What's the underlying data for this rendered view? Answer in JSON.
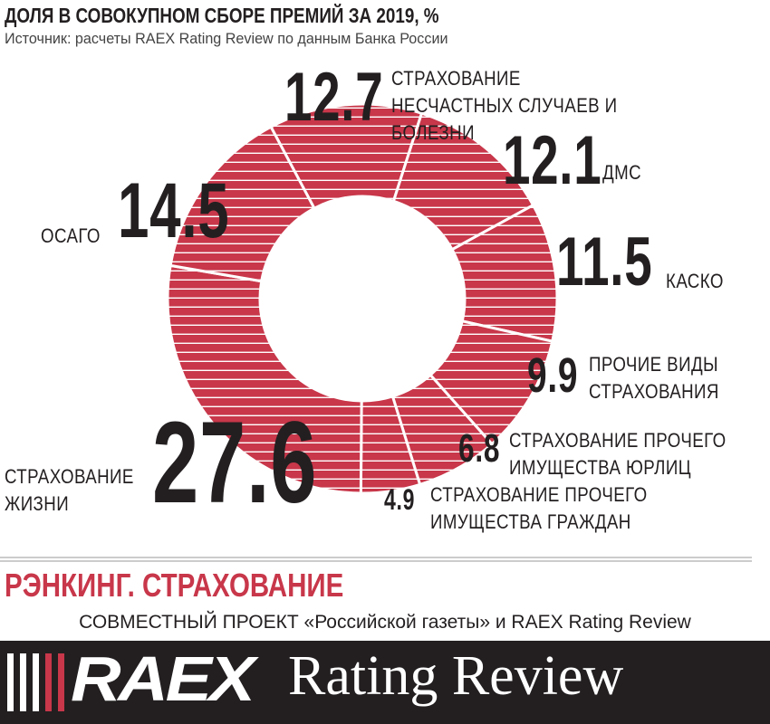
{
  "chart_data": {
    "type": "donut",
    "title": "ДОЛЯ В СОВОКУПНОМ СБОРЕ ПРЕМИЙ ЗА 2019, %",
    "subtitle": "Источник: расчеты RAEX Rating Review по данным Банка России",
    "categories": [
      "СТРАХОВАНИЕ НЕСЧАСТНЫХ СЛУЧАЕВ И БОЛЕЗНИ",
      "ДМС",
      "КАСКО",
      "ПРОЧИЕ ВИДЫ СТРАХОВАНИЯ",
      "СТРАХОВАНИЕ ПРОЧЕГО ИМУЩЕСТВА ЮРЛИЦ",
      "СТРАХОВАНИЕ ПРОЧЕГО ИМУЩЕСТВА ГРАЖДАН",
      "СТРАХОВАНИЕ ЖИЗНИ",
      "ОСАГО"
    ],
    "values": [
      12.7,
      12.1,
      11.5,
      9.9,
      6.8,
      4.9,
      27.6,
      14.5
    ],
    "color": "#c8374a"
  },
  "footer": {
    "ranking": "РЭНКИНГ. СТРАХОВАНИЕ",
    "project": "СОВМЕСТНЫЙ ПРОЕКТ «Российской газеты» и RAEX Rating Review"
  },
  "logo": {
    "brand": "RAEX",
    "tagline": "Rating Review"
  }
}
